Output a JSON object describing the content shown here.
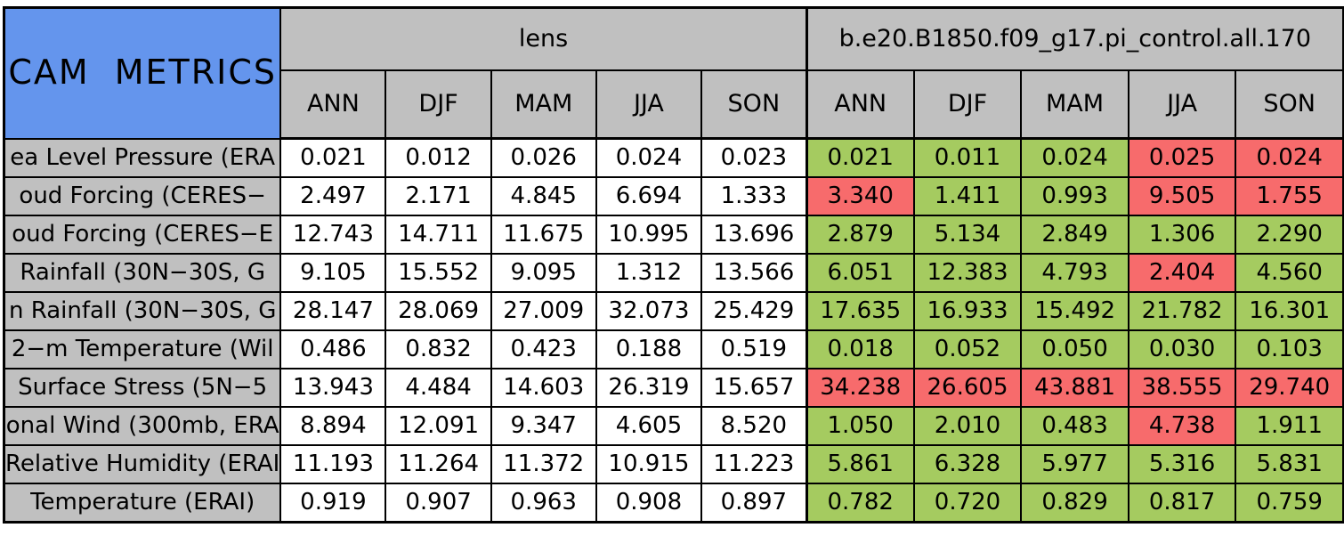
{
  "chart_data": {
    "type": "table",
    "title": "CAM METRICS",
    "column_groups": [
      {
        "label": "lens"
      },
      {
        "label": "b.e20.B1850.f09_g17.pi_control.all.170"
      }
    ],
    "seasons": [
      "ANN",
      "DJF",
      "MAM",
      "JJA",
      "SON"
    ],
    "rows": [
      {
        "label": "ea Level Pressure (ERA",
        "lens": [
          "0.021",
          "0.012",
          "0.026",
          "0.024",
          "0.023"
        ],
        "control": [
          "0.021",
          "0.011",
          "0.024",
          "0.025",
          "0.024"
        ],
        "control_status": [
          "good",
          "good",
          "good",
          "bad",
          "bad"
        ]
      },
      {
        "label": "oud Forcing (CERES−",
        "lens": [
          "2.497",
          "2.171",
          "4.845",
          "6.694",
          "1.333"
        ],
        "control": [
          "3.340",
          "1.411",
          "0.993",
          "9.505",
          "1.755"
        ],
        "control_status": [
          "bad",
          "good",
          "good",
          "bad",
          "bad"
        ]
      },
      {
        "label": "oud Forcing (CERES−E",
        "lens": [
          "12.743",
          "14.711",
          "11.675",
          "10.995",
          "13.696"
        ],
        "control": [
          "2.879",
          "5.134",
          "2.849",
          "1.306",
          "2.290"
        ],
        "control_status": [
          "good",
          "good",
          "good",
          "good",
          "good"
        ]
      },
      {
        "label": "Rainfall (30N−30S, G",
        "lens": [
          "9.105",
          "15.552",
          "9.095",
          "1.312",
          "13.566"
        ],
        "control": [
          "6.051",
          "12.383",
          "4.793",
          "2.404",
          "4.560"
        ],
        "control_status": [
          "good",
          "good",
          "good",
          "bad",
          "good"
        ]
      },
      {
        "label": "n Rainfall (30N−30S, G",
        "lens": [
          "28.147",
          "28.069",
          "27.009",
          "32.073",
          "25.429"
        ],
        "control": [
          "17.635",
          "16.933",
          "15.492",
          "21.782",
          "16.301"
        ],
        "control_status": [
          "good",
          "good",
          "good",
          "good",
          "good"
        ]
      },
      {
        "label": "2−m Temperature (Wil",
        "lens": [
          "0.486",
          "0.832",
          "0.423",
          "0.188",
          "0.519"
        ],
        "control": [
          "0.018",
          "0.052",
          "0.050",
          "0.030",
          "0.103"
        ],
        "control_status": [
          "good",
          "good",
          "good",
          "good",
          "good"
        ]
      },
      {
        "label": "Surface Stress (5N−5",
        "lens": [
          "13.943",
          "4.484",
          "14.603",
          "26.319",
          "15.657"
        ],
        "control": [
          "34.238",
          "26.605",
          "43.881",
          "38.555",
          "29.740"
        ],
        "control_status": [
          "bad",
          "bad",
          "bad",
          "bad",
          "bad"
        ]
      },
      {
        "label": "onal Wind (300mb, ERA",
        "lens": [
          "8.894",
          "12.091",
          "9.347",
          "4.605",
          "8.520"
        ],
        "control": [
          "1.050",
          "2.010",
          "0.483",
          "4.738",
          "1.911"
        ],
        "control_status": [
          "good",
          "good",
          "good",
          "bad",
          "good"
        ]
      },
      {
        "label": "Relative Humidity (ERAI",
        "lens": [
          "11.193",
          "11.264",
          "11.372",
          "10.915",
          "11.223"
        ],
        "control": [
          "5.861",
          "6.328",
          "5.977",
          "5.316",
          "5.831"
        ],
        "control_status": [
          "good",
          "good",
          "good",
          "good",
          "good"
        ]
      },
      {
        "label": "Temperature (ERAI)",
        "lens": [
          "0.919",
          "0.907",
          "0.963",
          "0.908",
          "0.897"
        ],
        "control": [
          "0.782",
          "0.720",
          "0.829",
          "0.817",
          "0.759"
        ],
        "control_status": [
          "good",
          "good",
          "good",
          "good",
          "good"
        ]
      }
    ],
    "colors": {
      "title_bg": "#6495ed",
      "header_bg": "#c0c0c0",
      "good_bg": "#a5cb60",
      "bad_bg": "#f76b6c",
      "lens_cell_bg": "#ffffff",
      "border": "#000000"
    },
    "layout": {
      "label_col_width": 300,
      "lens_col_width": 119,
      "control_col_width": 121,
      "grid": "on"
    }
  }
}
